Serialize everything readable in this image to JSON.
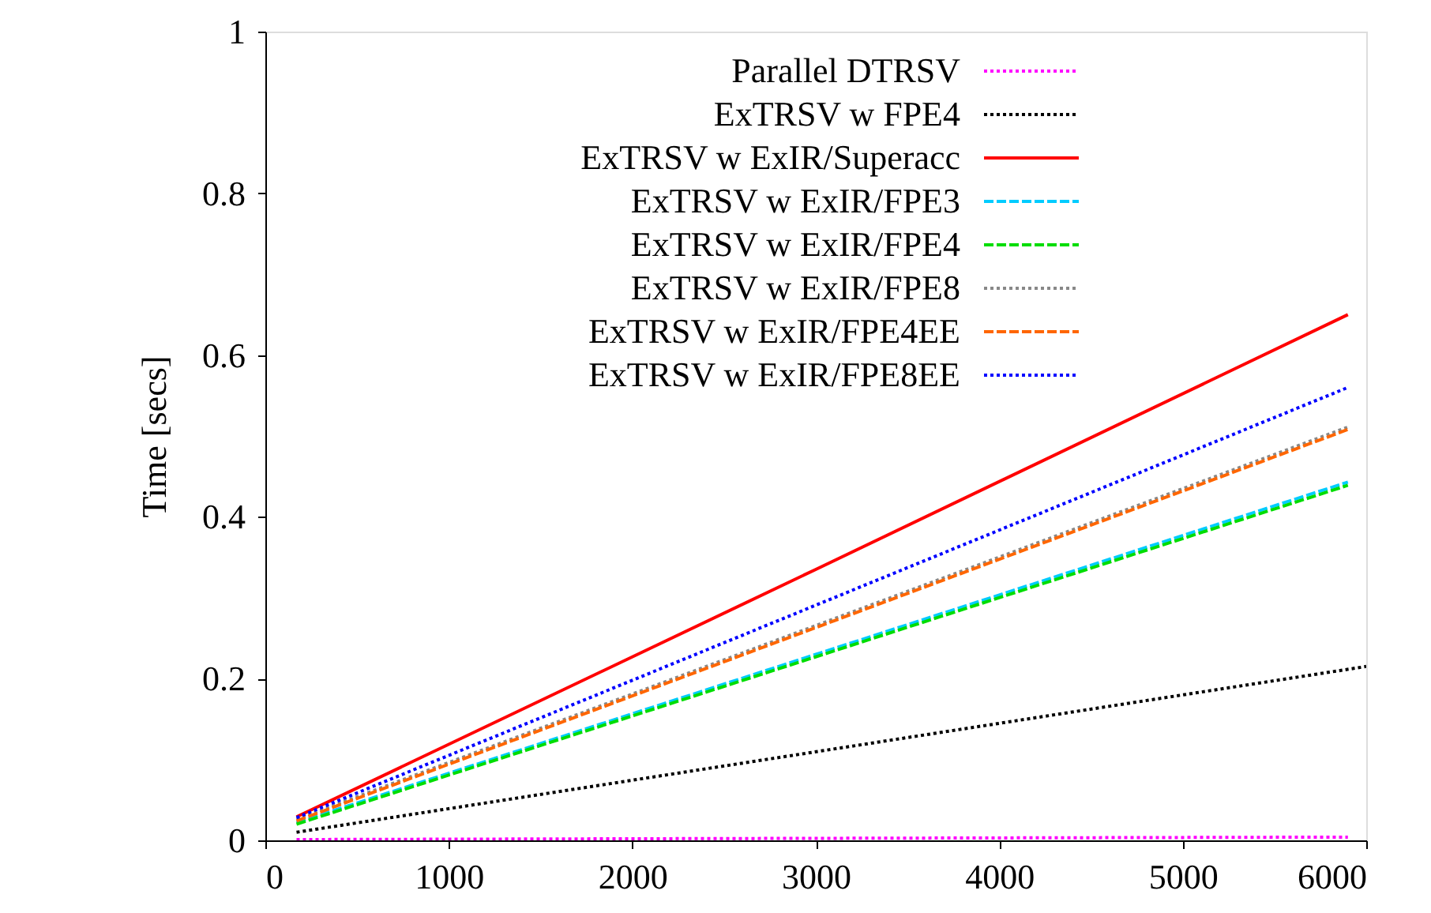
{
  "chart_data": {
    "type": "line",
    "ylabel": "Time [secs]",
    "xlim": [
      0,
      6000
    ],
    "ylim": [
      0,
      1
    ],
    "xticks": [
      0,
      1000,
      2000,
      3000,
      4000,
      5000,
      6000
    ],
    "yticks": [
      0,
      0.2,
      0.4,
      0.6,
      0.8,
      1
    ],
    "grid": false,
    "legend": "top right",
    "marker": "none",
    "series": [
      {
        "name": "Parallel DTRSV",
        "color": "#ff00ff",
        "line_style": "dotted",
        "x": [
          170,
          5900
        ],
        "values": [
          0.001,
          0.004
        ]
      },
      {
        "name": "ExTRSV w FPE4",
        "color": "#000000",
        "line_style": "dotted",
        "x": [
          170,
          6000
        ],
        "values": [
          0.01,
          0.215
        ]
      },
      {
        "name": "ExTRSV w ExIR/Superacc",
        "color": "#ff0000",
        "line_style": "solid",
        "x": [
          170,
          3000,
          5900
        ],
        "values": [
          0.029,
          0.335,
          0.65
        ]
      },
      {
        "name": "ExTRSV w ExIR/FPE3",
        "color": "#00ccff",
        "line_style": "dashed",
        "x": [
          170,
          5900
        ],
        "values": [
          0.022,
          0.443
        ]
      },
      {
        "name": "ExTRSV w ExIR/FPE4",
        "color": "#00dd00",
        "line_style": "dashed",
        "x": [
          170,
          5900
        ],
        "values": [
          0.02,
          0.439
        ]
      },
      {
        "name": "ExTRSV w ExIR/FPE8",
        "color": "#888888",
        "line_style": "dotted",
        "x": [
          170,
          5900
        ],
        "values": [
          0.026,
          0.511
        ]
      },
      {
        "name": "ExTRSV w ExIR/FPE4EE",
        "color": "#ff6600",
        "line_style": "dashed",
        "x": [
          170,
          5900
        ],
        "values": [
          0.024,
          0.508
        ]
      },
      {
        "name": "ExTRSV w ExIR/FPE8EE",
        "color": "#0000ff",
        "line_style": "dotted",
        "x": [
          170,
          5900
        ],
        "values": [
          0.028,
          0.56
        ]
      }
    ]
  }
}
